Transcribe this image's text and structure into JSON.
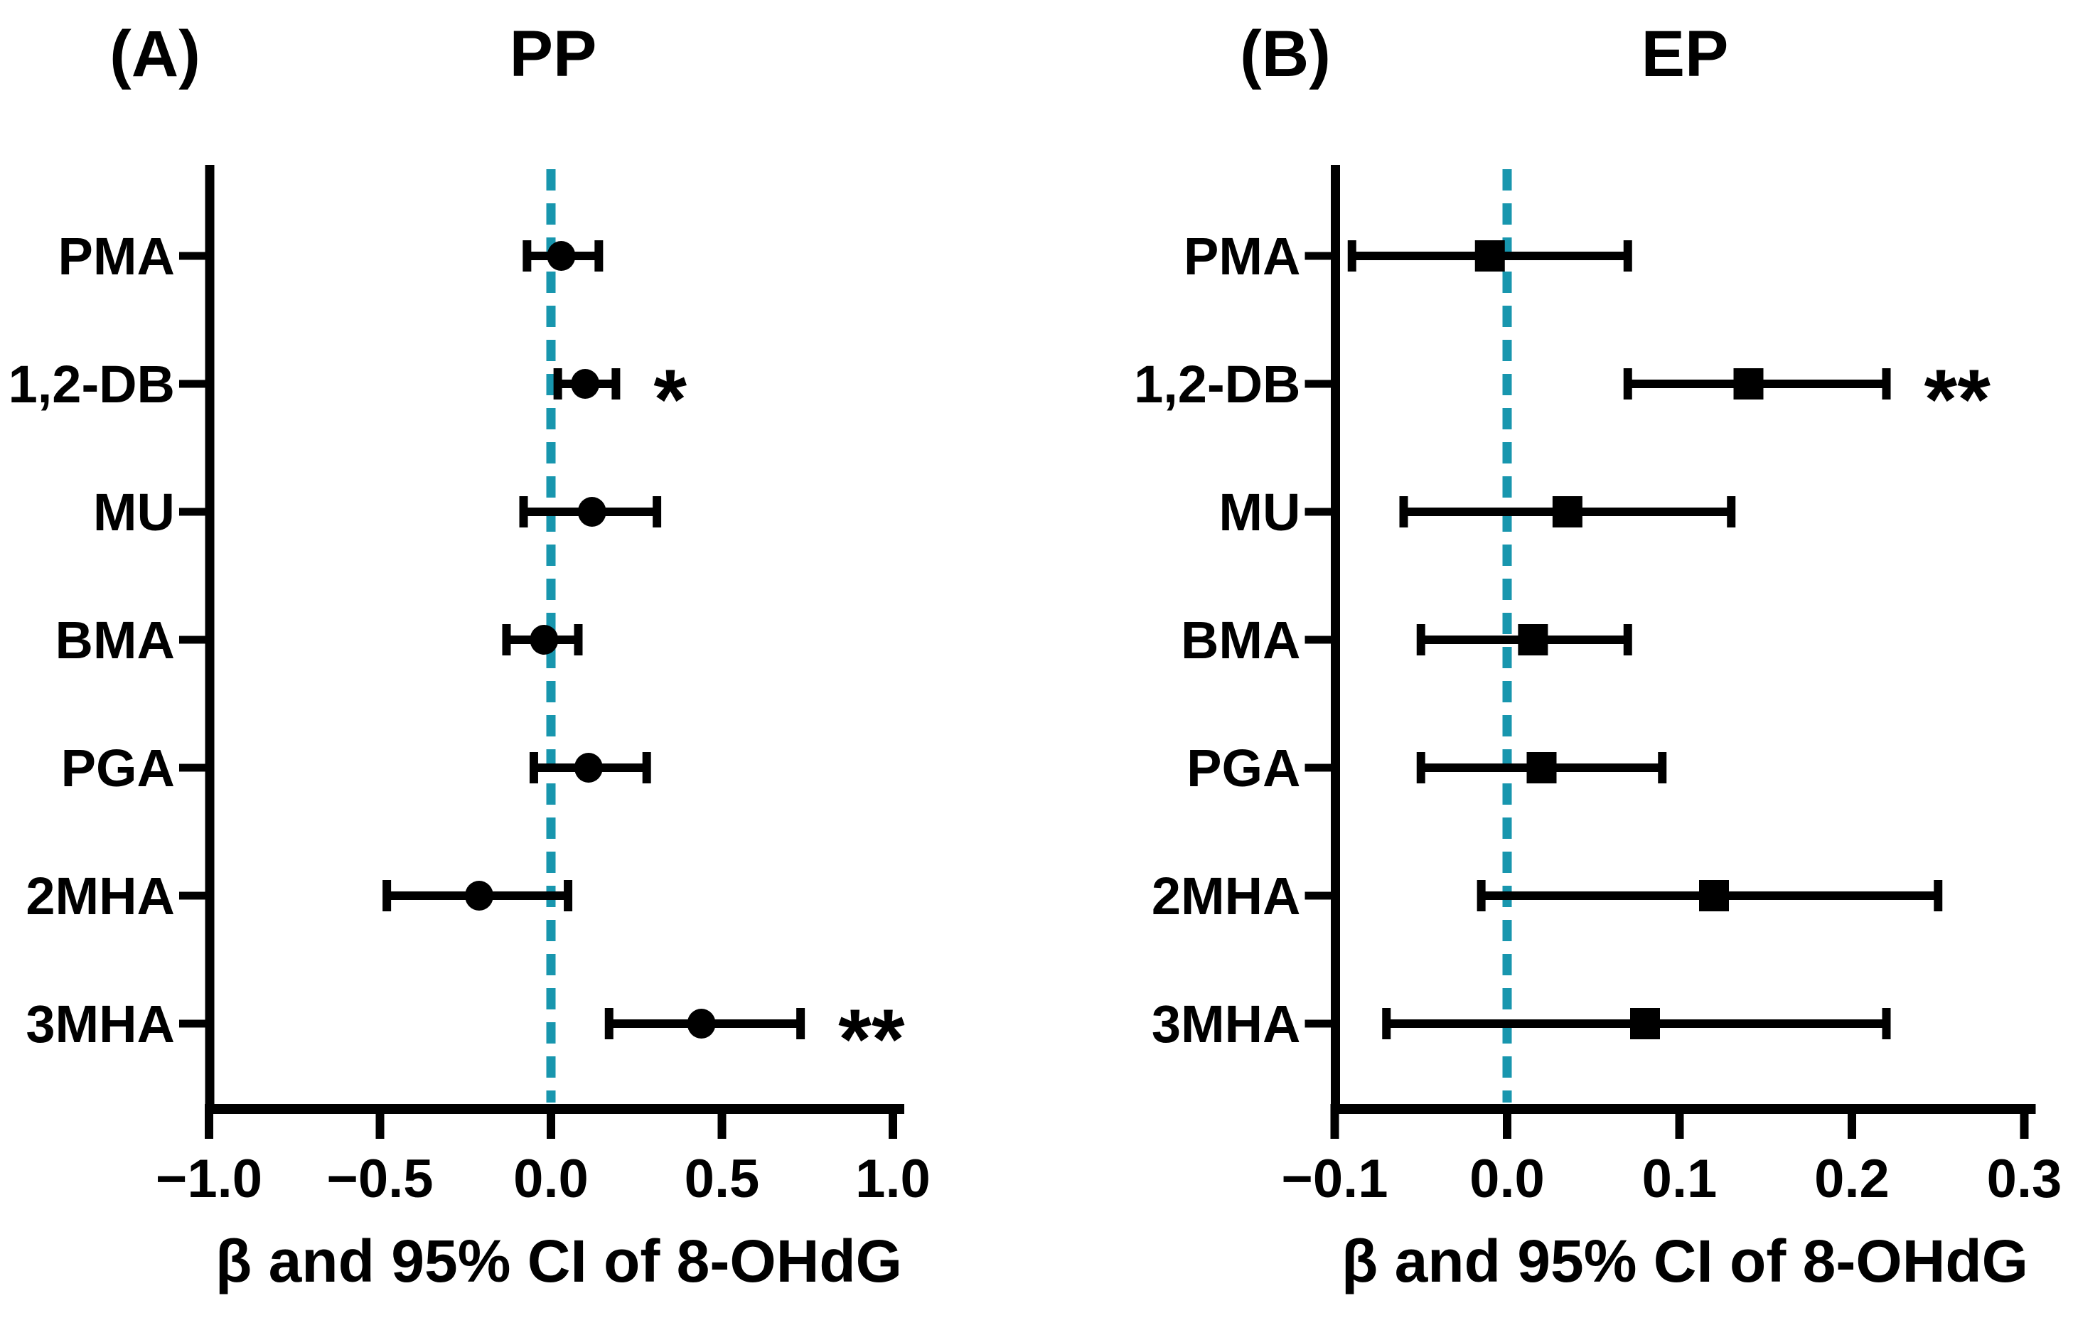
{
  "page": {
    "background": "#ffffff"
  },
  "colors": {
    "data": "#000000",
    "zero_line": "#1896AE",
    "text": "#000000"
  },
  "chart_data": [
    {
      "type": "forest",
      "panel_label": "(A)",
      "title": "PP",
      "xlabel": "β and 95% CI of 8-OHdG",
      "marker": "circle",
      "xlim": [
        -1.0,
        1.0
      ],
      "zero_line": 0.0,
      "grid": false,
      "xticks": [
        {
          "value": -1.0,
          "label": "−1.0"
        },
        {
          "value": -0.5,
          "label": "−0.5"
        },
        {
          "value": 0.0,
          "label": "0.0"
        },
        {
          "value": 0.5,
          "label": "0.5"
        },
        {
          "value": 1.0,
          "label": "1.0"
        }
      ],
      "rows": [
        {
          "category": "PMA",
          "beta": 0.03,
          "ci_low": -0.07,
          "ci_high": 0.14,
          "significance": ""
        },
        {
          "category": "1,2-DB",
          "beta": 0.1,
          "ci_low": 0.02,
          "ci_high": 0.19,
          "significance": "*"
        },
        {
          "category": "MU",
          "beta": 0.12,
          "ci_low": -0.08,
          "ci_high": 0.31,
          "significance": ""
        },
        {
          "category": "BMA",
          "beta": -0.02,
          "ci_low": -0.13,
          "ci_high": 0.08,
          "significance": ""
        },
        {
          "category": "PGA",
          "beta": 0.11,
          "ci_low": -0.05,
          "ci_high": 0.28,
          "significance": ""
        },
        {
          "category": "2MHA",
          "beta": -0.21,
          "ci_low": -0.48,
          "ci_high": 0.05,
          "significance": ""
        },
        {
          "category": "3MHA",
          "beta": 0.44,
          "ci_low": 0.17,
          "ci_high": 0.73,
          "significance": "**"
        }
      ]
    },
    {
      "type": "forest",
      "panel_label": "(B)",
      "title": "EP",
      "xlabel": "β and 95% CI of 8-OHdG",
      "marker": "square",
      "xlim": [
        -0.1,
        0.3
      ],
      "zero_line": 0.0,
      "grid": false,
      "xticks": [
        {
          "value": -0.1,
          "label": "−0.1"
        },
        {
          "value": 0.0,
          "label": "0.0"
        },
        {
          "value": 0.1,
          "label": "0.1"
        },
        {
          "value": 0.2,
          "label": "0.2"
        },
        {
          "value": 0.3,
          "label": "0.3"
        }
      ],
      "rows": [
        {
          "category": "PMA",
          "beta": -0.01,
          "ci_low": -0.09,
          "ci_high": 0.07,
          "significance": ""
        },
        {
          "category": "1,2-DB",
          "beta": 0.14,
          "ci_low": 0.07,
          "ci_high": 0.22,
          "significance": "**"
        },
        {
          "category": "MU",
          "beta": 0.035,
          "ci_low": -0.06,
          "ci_high": 0.13,
          "significance": ""
        },
        {
          "category": "BMA",
          "beta": 0.015,
          "ci_low": -0.05,
          "ci_high": 0.07,
          "significance": ""
        },
        {
          "category": "PGA",
          "beta": 0.02,
          "ci_low": -0.05,
          "ci_high": 0.09,
          "significance": ""
        },
        {
          "category": "2MHA",
          "beta": 0.12,
          "ci_low": -0.015,
          "ci_high": 0.25,
          "significance": ""
        },
        {
          "category": "3MHA",
          "beta": 0.08,
          "ci_low": -0.07,
          "ci_high": 0.22,
          "significance": ""
        }
      ]
    }
  ]
}
